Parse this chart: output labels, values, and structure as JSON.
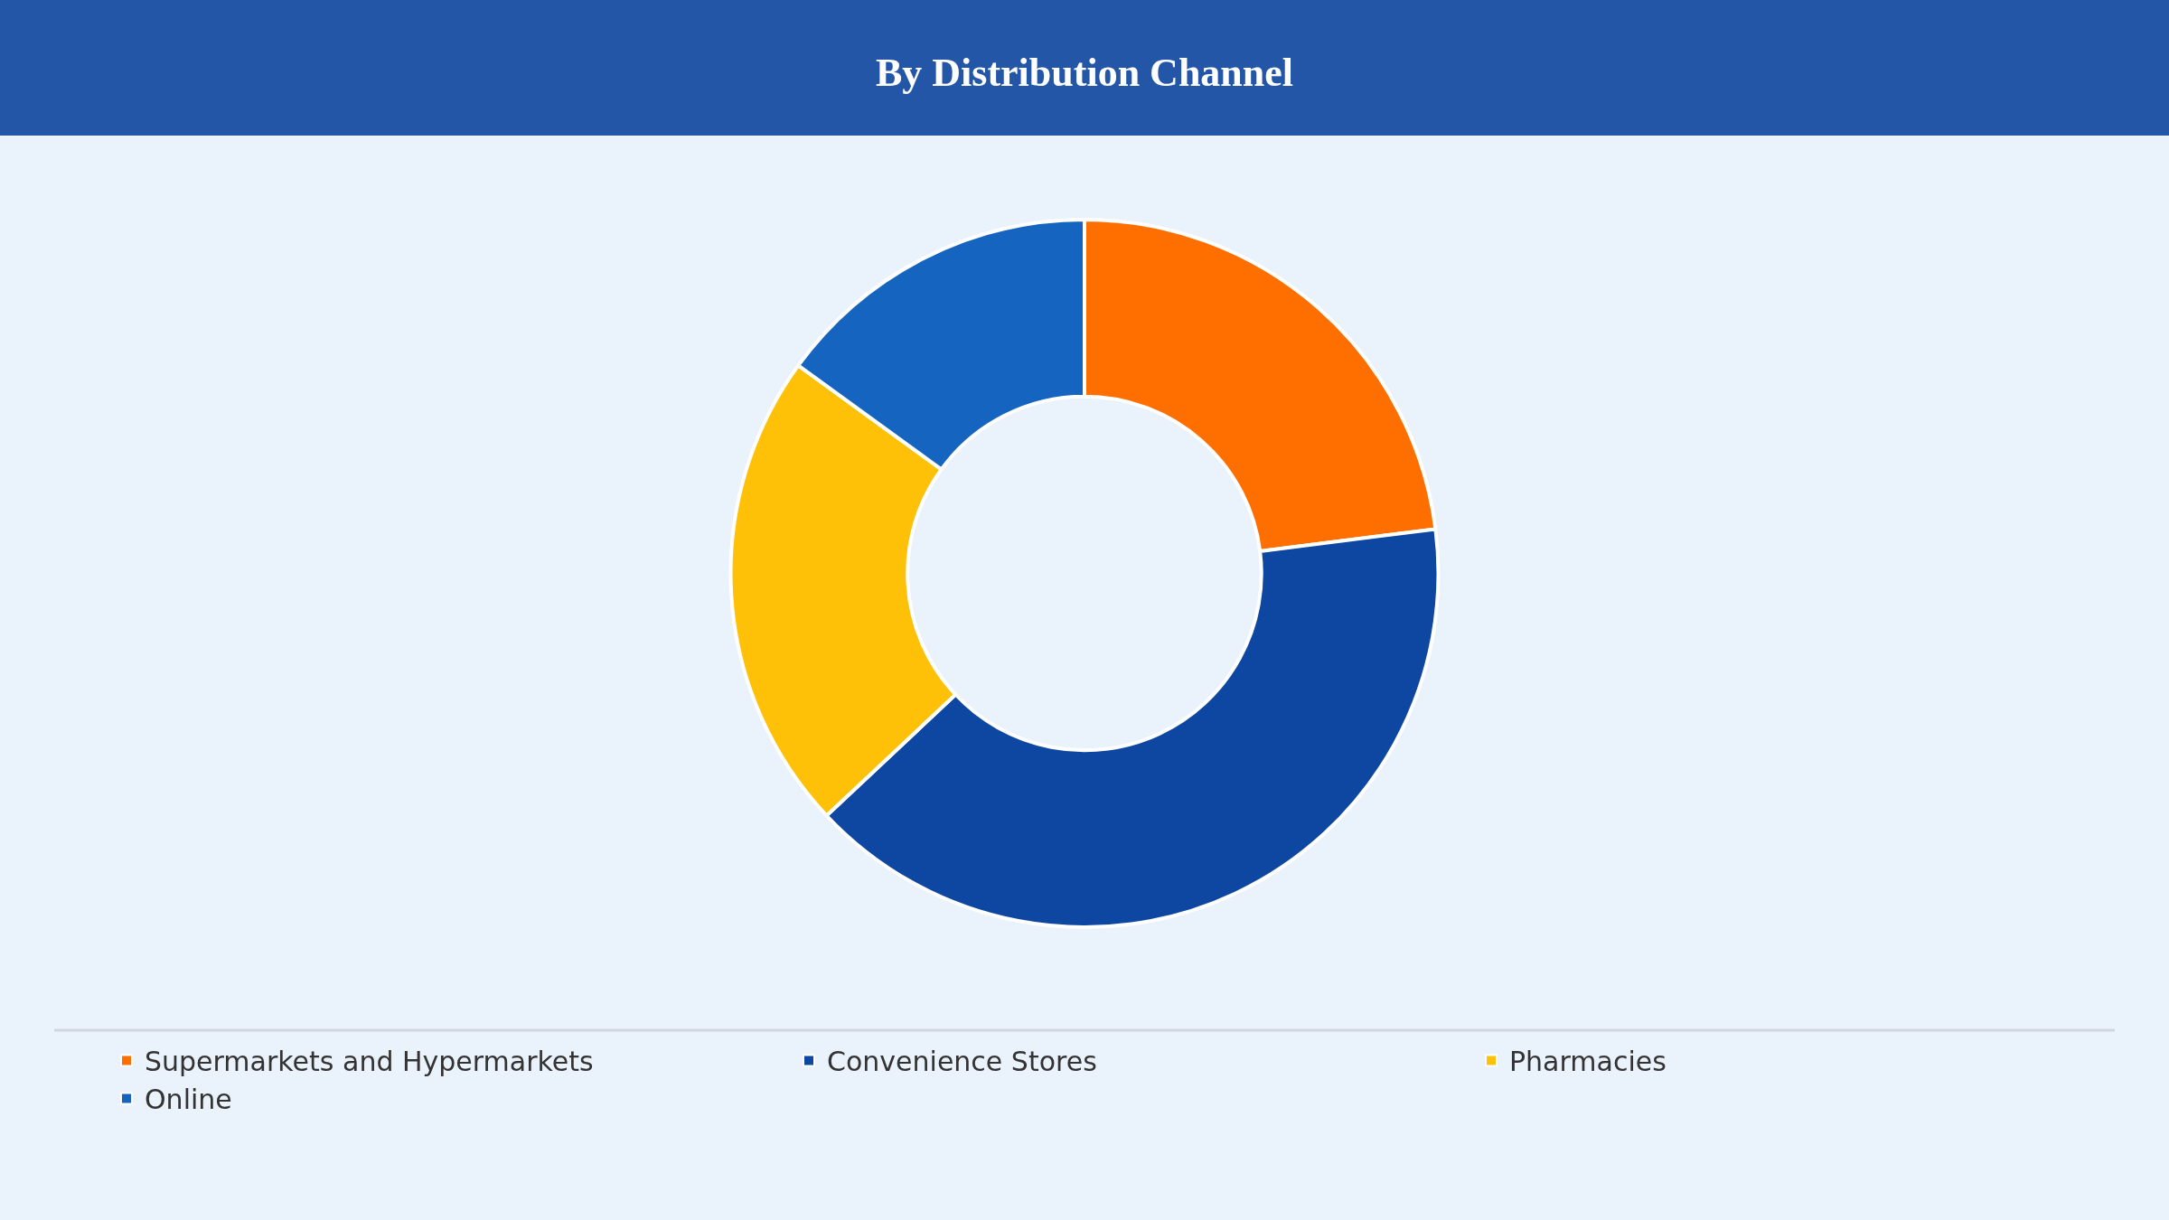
{
  "chart_data": {
    "type": "donut",
    "title": "By Distribution Channel",
    "categories": [
      "Supermarkets and Hypermarkets",
      "Convenience Stores",
      "Pharmacies",
      "Online"
    ],
    "values": [
      23,
      40,
      22,
      15
    ],
    "colors": [
      "#ff6f00",
      "#0d47a1",
      "#ffc107",
      "#1565c0"
    ],
    "legend": "bottom"
  }
}
